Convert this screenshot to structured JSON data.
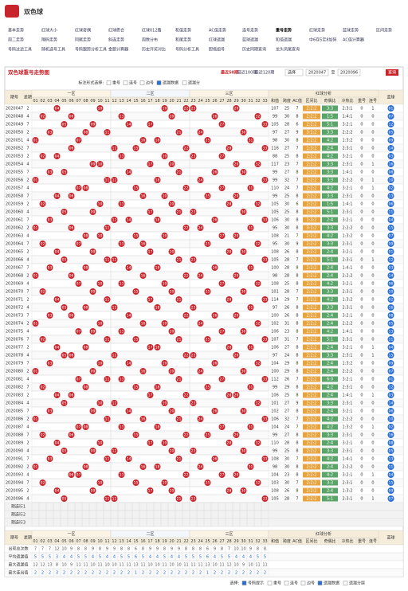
{
  "header": {
    "title": "双色球",
    "nav": [
      [
        "基本走势",
        "红球大小",
        "红球奇偶",
        "红球质合",
        "红球012路",
        "和值走势",
        "AC值走势",
        "连号走势",
        "重号走势",
        "红球走势",
        "蓝球走势",
        "区间走势"
      ],
      [
        "周二走势",
        "隔码走势",
        "同尾走势",
        "斜连走势",
        "周数分布",
        "和尾走势",
        "红球遗漏",
        "蓝球遗漏",
        "和值遗漏",
        "中6存5定8加码",
        "AC值计算器"
      ],
      [
        "号码过滤工具",
        "随机选号工具",
        "号码跟踪分析工具",
        "金额计算器",
        "历史开奖对比",
        "号码分析工具",
        "胆拖组号",
        "历史同期查询",
        "龙头凤尾查询"
      ]
    ]
  },
  "panel": {
    "title": "双色球重号走势图",
    "recent": [
      "最近50期",
      "最近100期",
      "最近120期"
    ],
    "select": "选择",
    "from": "2020047",
    "to_label": "至",
    "to": "2020096",
    "query": "查询"
  },
  "options": {
    "label": "标注形式选择:",
    "items": [
      {
        "label": "重号",
        "checked": false
      },
      {
        "label": "连号",
        "checked": false
      },
      {
        "label": "边号",
        "checked": false
      },
      {
        "label": "遗漏数据",
        "checked": true
      },
      {
        "label": "遗漏分",
        "checked": false
      }
    ]
  },
  "table": {
    "issue_h": "期号",
    "week_h": "星期",
    "zones": [
      "一区",
      "二区",
      "三区"
    ],
    "analysis_h": "红球分析",
    "analysis_cols": [
      "和值",
      "跨度",
      "AC值",
      "区间比",
      "奇偶比",
      "冷热比",
      "重号",
      "连号"
    ],
    "blue_h": "蓝球",
    "red_cols": [
      "01",
      "02",
      "03",
      "04",
      "05",
      "06",
      "07",
      "08",
      "09",
      "10",
      "11",
      "12",
      "13",
      "14",
      "15",
      "16",
      "17",
      "18",
      "19",
      "20",
      "21",
      "22",
      "23",
      "24",
      "25",
      "26",
      "27",
      "28",
      "29",
      "30",
      "31",
      "32",
      "33"
    ],
    "rows": [
      [
        "2020047",
        2,
        [
          "04",
          "10",
          "19",
          "22",
          "23",
          "29"
        ],
        107,
        25,
        7,
        "2:2:2",
        "3:3",
        "2:3:1",
        0,
        1,
        "01"
      ],
      [
        "2020048",
        4,
        [
          "02",
          "06",
          "13",
          "20",
          "26",
          "32"
        ],
        99,
        30,
        8,
        "2:2:2",
        "1:5",
        "1:4:1",
        0,
        0,
        "07"
      ],
      [
        "2020049",
        7,
        [
          "05",
          "09",
          "14",
          "17",
          "27",
          "33"
        ],
        105,
        28,
        6,
        "2:2:2",
        "5:1",
        "3:2:1",
        0,
        0,
        "12"
      ],
      [
        "2020050",
        2,
        [
          "03",
          "08",
          "11",
          "21",
          "24",
          "30"
        ],
        97,
        27,
        9,
        "3:1:2",
        "3:3",
        "2:2:2",
        0,
        0,
        "05"
      ],
      [
        "2020051",
        4,
        [
          "01",
          "07",
          "16",
          "18",
          "25",
          "31"
        ],
        98,
        30,
        8,
        "2:2:2",
        "4:2",
        "1:3:2",
        0,
        0,
        "09"
      ],
      [
        "2020052",
        7,
        [
          "06",
          "12",
          "15",
          "22",
          "28",
          "33"
        ],
        116,
        27,
        7,
        "1:3:2",
        "2:4",
        "2:3:1",
        0,
        0,
        "14"
      ],
      [
        "2020053",
        2,
        [
          "02",
          "04",
          "13",
          "19",
          "23",
          "27"
        ],
        88,
        25,
        8,
        "2:2:2",
        "4:2",
        "3:2:1",
        0,
        0,
        "03"
      ],
      [
        "2020054",
        4,
        [
          "09",
          "10",
          "17",
          "20",
          "29",
          "32"
        ],
        117,
        23,
        7,
        "2:2:2",
        "3:3",
        "2:3:1",
        0,
        1,
        "16"
      ],
      [
        "2020055",
        7,
        [
          "03",
          "05",
          "14",
          "21",
          "26",
          "30"
        ],
        99,
        27,
        8,
        "2:2:2",
        "3:3",
        "1:4:1",
        0,
        0,
        "08"
      ],
      [
        "2020056",
        2,
        [
          "01",
          "11",
          "12",
          "18",
          "24",
          "33"
        ],
        99,
        32,
        7,
        "2:2:2",
        "3:3",
        "2:2:2",
        0,
        1,
        "10"
      ],
      [
        "2020057",
        4,
        [
          "07",
          "08",
          "15",
          "22",
          "27",
          "31"
        ],
        110,
        24,
        7,
        "2:2:2",
        "4:2",
        "3:2:1",
        0,
        1,
        "02"
      ],
      [
        "2020058",
        7,
        [
          "04",
          "06",
          "16",
          "19",
          "25",
          "29"
        ],
        99,
        25,
        8,
        "2:2:2",
        "3:3",
        "2:3:1",
        0,
        0,
        "13"
      ],
      [
        "2020059",
        2,
        [
          "02",
          "10",
          "13",
          "20",
          "28",
          "32"
        ],
        105,
        30,
        6,
        "2:2:2",
        "1:5",
        "1:4:1",
        0,
        0,
        "06"
      ],
      [
        "2020060",
        4,
        [
          "05",
          "09",
          "17",
          "21",
          "23",
          "30"
        ],
        105,
        25,
        8,
        "2:2:2",
        "5:1",
        "2:3:1",
        0,
        0,
        "11"
      ],
      [
        "2020061",
        7,
        [
          "03",
          "12",
          "14",
          "18",
          "26",
          "33"
        ],
        106,
        30,
        8,
        "1:3:2",
        "2:4",
        "3:2:1",
        0,
        0,
        "04"
      ],
      [
        "2020062",
        2,
        [
          "01",
          "06",
          "11",
          "22",
          "24",
          "31"
        ],
        95,
        30,
        8,
        "3:1:2",
        "3:3",
        "2:2:2",
        0,
        0,
        "15"
      ],
      [
        "2020063",
        4,
        [
          "08",
          "10",
          "15",
          "19",
          "27",
          "29"
        ],
        108,
        21,
        7,
        "2:2:2",
        "4:2",
        "1:3:2",
        0,
        0,
        "07"
      ],
      [
        "2020064",
        7,
        [
          "02",
          "07",
          "13",
          "16",
          "25",
          "32"
        ],
        95,
        30,
        9,
        "2:2:2",
        "3:3",
        "2:3:1",
        0,
        0,
        "09"
      ],
      [
        "2020065",
        2,
        [
          "04",
          "09",
          "17",
          "20",
          "28",
          "30"
        ],
        108,
        26,
        8,
        "2:2:2",
        "2:4",
        "3:2:1",
        0,
        0,
        "01"
      ],
      [
        "2020066",
        4,
        [
          "05",
          "11",
          "12",
          "21",
          "23",
          "33"
        ],
        105,
        28,
        7,
        "2:2:2",
        "5:1",
        "2:3:1",
        0,
        1,
        "12"
      ],
      [
        "2020067",
        7,
        [
          "03",
          "08",
          "14",
          "18",
          "26",
          "31"
        ],
        100,
        28,
        8,
        "2:2:2",
        "2:4",
        "1:4:1",
        0,
        0,
        "03"
      ],
      [
        "2020068",
        2,
        [
          "01",
          "06",
          "16",
          "22",
          "24",
          "29"
        ],
        98,
        28,
        8,
        "2:2:2",
        "2:4",
        "2:2:2",
        0,
        0,
        "14"
      ],
      [
        "2020069",
        4,
        [
          "07",
          "10",
          "13",
          "19",
          "27",
          "32"
        ],
        108,
        25,
        8,
        "2:2:2",
        "4:2",
        "3:2:1",
        0,
        0,
        "06"
      ],
      [
        "2020070",
        7,
        [
          "02",
          "09",
          "15",
          "20",
          "25",
          "30"
        ],
        101,
        28,
        7,
        "2:2:2",
        "3:3",
        "2:3:1",
        0,
        0,
        "10"
      ],
      [
        "2020071",
        2,
        [
          "04",
          "11",
          "17",
          "21",
          "28",
          "33"
        ],
        114,
        29,
        7,
        "2:2:2",
        "4:2",
        "1:3:2",
        0,
        0,
        "02"
      ],
      [
        "2020072",
        4,
        [
          "05",
          "08",
          "12",
          "18",
          "23",
          "31"
        ],
        97,
        26,
        8,
        "2:2:2",
        "3:3",
        "2:3:1",
        0,
        0,
        "16"
      ],
      [
        "2020073",
        7,
        [
          "03",
          "06",
          "14",
          "22",
          "26",
          "29"
        ],
        100,
        26,
        8,
        "2:2:2",
        "2:4",
        "3:2:1",
        0,
        0,
        "08"
      ],
      [
        "2020074",
        2,
        [
          "01",
          "10",
          "16",
          "19",
          "24",
          "32"
        ],
        102,
        31,
        8,
        "2:2:2",
        "2:4",
        "2:2:2",
        0,
        0,
        "05"
      ],
      [
        "2020075",
        4,
        [
          "07",
          "09",
          "13",
          "20",
          "27",
          "30"
        ],
        106,
        23,
        8,
        "2:2:2",
        "4:2",
        "1:4:1",
        0,
        0,
        "13"
      ],
      [
        "2020076",
        7,
        [
          "02",
          "11",
          "15",
          "21",
          "25",
          "33"
        ],
        107,
        31,
        7,
        "2:2:2",
        "5:1",
        "2:3:1",
        0,
        0,
        "11"
      ],
      [
        "2020077",
        2,
        [
          "04",
          "08",
          "17",
          "18",
          "28",
          "31"
        ],
        106,
        27,
        8,
        "2:2:2",
        "2:4",
        "3:2:1",
        0,
        1,
        "04"
      ],
      [
        "2020078",
        4,
        [
          "05",
          "06",
          "12",
          "22",
          "23",
          "29"
        ],
        97,
        24,
        8,
        "2:2:2",
        "3:3",
        "2:3:1",
        0,
        1,
        "15"
      ],
      [
        "2020079",
        7,
        [
          "03",
          "10",
          "14",
          "19",
          "26",
          "32"
        ],
        104,
        29,
        8,
        "2:2:2",
        "2:4",
        "1:3:2",
        0,
        0,
        "09"
      ],
      [
        "2020080",
        2,
        [
          "01",
          "09",
          "16",
          "20",
          "24",
          "30"
        ],
        100,
        29,
        8,
        "2:2:2",
        "2:4",
        "2:2:2",
        0,
        0,
        "07"
      ],
      [
        "2020081",
        4,
        [
          "07",
          "11",
          "13",
          "21",
          "27",
          "33"
        ],
        112,
        26,
        7,
        "2:2:2",
        "6:0",
        "3:2:1",
        0,
        0,
        "01"
      ],
      [
        "2020082",
        7,
        [
          "02",
          "08",
          "15",
          "18",
          "25",
          "31"
        ],
        99,
        29,
        8,
        "2:2:2",
        "4:2",
        "2:3:1",
        0,
        0,
        "12"
      ],
      [
        "2020083",
        2,
        [
          "04",
          "06",
          "17",
          "22",
          "28",
          "29"
        ],
        106,
        25,
        8,
        "2:2:2",
        "2:4",
        "1:4:1",
        0,
        1,
        "03"
      ],
      [
        "2020084",
        4,
        [
          "05",
          "10",
          "12",
          "19",
          "23",
          "32"
        ],
        101,
        27,
        9,
        "2:2:2",
        "3:3",
        "2:3:1",
        0,
        0,
        "14"
      ],
      [
        "2020085",
        7,
        [
          "03",
          "09",
          "14",
          "20",
          "26",
          "30"
        ],
        102,
        27,
        8,
        "2:2:2",
        "2:4",
        "3:2:1",
        0,
        0,
        "06"
      ],
      [
        "2020086",
        2,
        [
          "01",
          "11",
          "16",
          "21",
          "24",
          "33"
        ],
        106,
        32,
        7,
        "2:2:2",
        "4:2",
        "2:2:2",
        0,
        0,
        "10"
      ],
      [
        "2020087",
        4,
        [
          "07",
          "08",
          "13",
          "18",
          "27",
          "31"
        ],
        104,
        24,
        7,
        "2:2:2",
        "4:2",
        "1:3:2",
        0,
        1,
        "02"
      ],
      [
        "2020088",
        7,
        [
          "02",
          "06",
          "15",
          "22",
          "25",
          "29"
        ],
        99,
        27,
        8,
        "2:2:2",
        "3:3",
        "2:3:1",
        0,
        0,
        "16"
      ],
      [
        "2020089",
        2,
        [
          "04",
          "10",
          "17",
          "19",
          "28",
          "32"
        ],
        110,
        28,
        8,
        "2:2:2",
        "2:4",
        "3:2:1",
        0,
        0,
        "08"
      ],
      [
        "2020090",
        4,
        [
          "05",
          "09",
          "12",
          "20",
          "23",
          "30"
        ],
        99,
        25,
        8,
        "2:2:2",
        "3:3",
        "2:3:1",
        0,
        0,
        "05"
      ],
      [
        "2020091",
        7,
        [
          "03",
          "11",
          "14",
          "21",
          "26",
          "33"
        ],
        108,
        30,
        7,
        "2:2:2",
        "4:2",
        "1:4:1",
        0,
        0,
        "13"
      ],
      [
        "2020092",
        2,
        [
          "01",
          "08",
          "16",
          "18",
          "24",
          "31"
        ],
        98,
        30,
        8,
        "2:2:2",
        "2:4",
        "2:2:2",
        0,
        0,
        "11"
      ],
      [
        "2020093",
        4,
        [
          "06",
          "07",
          "13",
          "22",
          "27",
          "29"
        ],
        104,
        23,
        8,
        "2:2:2",
        "4:2",
        "3:2:1",
        0,
        1,
        "04"
      ],
      [
        "2020094",
        7,
        [
          "02",
          "10",
          "15",
          "19",
          "25",
          "32"
        ],
        103,
        30,
        7,
        "2:2:2",
        "3:3",
        "2:3:1",
        0,
        0,
        "15"
      ],
      [
        "2020095",
        2,
        [
          "04",
          "09",
          "17",
          "20",
          "28",
          "30"
        ],
        108,
        26,
        8,
        "2:2:2",
        "2:4",
        "1:3:2",
        0,
        0,
        "09"
      ],
      [
        "2020096",
        4,
        [
          "05",
          "11",
          "12",
          "21",
          "23",
          "33"
        ],
        105,
        28,
        7,
        "2:2:2",
        "5:1",
        "2:3:1",
        0,
        1,
        "07"
      ]
    ],
    "preselect": [
      "预选行1",
      "预选行2",
      "预选行3"
    ],
    "stats_labels": [
      "出现总次数",
      "平均遗漏值",
      "最大遗漏值",
      "最大连出值"
    ],
    "stats": [
      [
        7,
        7,
        7,
        12,
        10,
        9,
        8,
        8,
        9,
        8,
        9,
        9,
        8,
        8,
        6,
        8,
        9,
        9,
        8,
        9,
        9,
        8,
        8,
        8,
        6,
        9,
        8,
        7,
        10,
        10,
        9,
        8,
        8
      ],
      [
        5,
        5,
        5,
        3,
        4,
        4,
        5,
        5,
        4,
        5,
        4,
        4,
        5,
        5,
        6,
        5,
        4,
        4,
        5,
        4,
        4,
        5,
        5,
        5,
        6,
        4,
        5,
        5,
        4,
        4,
        4,
        5,
        5
      ],
      [
        12,
        12,
        13,
        8,
        10,
        9,
        11,
        11,
        10,
        11,
        10,
        10,
        11,
        11,
        13,
        11,
        10,
        10,
        11,
        10,
        10,
        11,
        11,
        11,
        13,
        10,
        11,
        12,
        10,
        9,
        10,
        11,
        11
      ],
      [
        2,
        2,
        2,
        3,
        2,
        2,
        2,
        2,
        2,
        2,
        2,
        2,
        2,
        2,
        1,
        2,
        2,
        2,
        2,
        2,
        2,
        2,
        2,
        2,
        1,
        2,
        2,
        2,
        2,
        2,
        2,
        2,
        2
      ]
    ]
  },
  "bottom_bar": {
    "label": "选择:",
    "items": [
      {
        "label": "号码提示",
        "checked": true
      },
      {
        "label": "重号",
        "checked": false
      },
      {
        "label": "连号",
        "checked": false
      },
      {
        "label": "边号",
        "checked": false
      },
      {
        "label": "遗漏数据",
        "checked": true
      },
      {
        "label": "遗漏分层",
        "checked": false
      }
    ]
  }
}
